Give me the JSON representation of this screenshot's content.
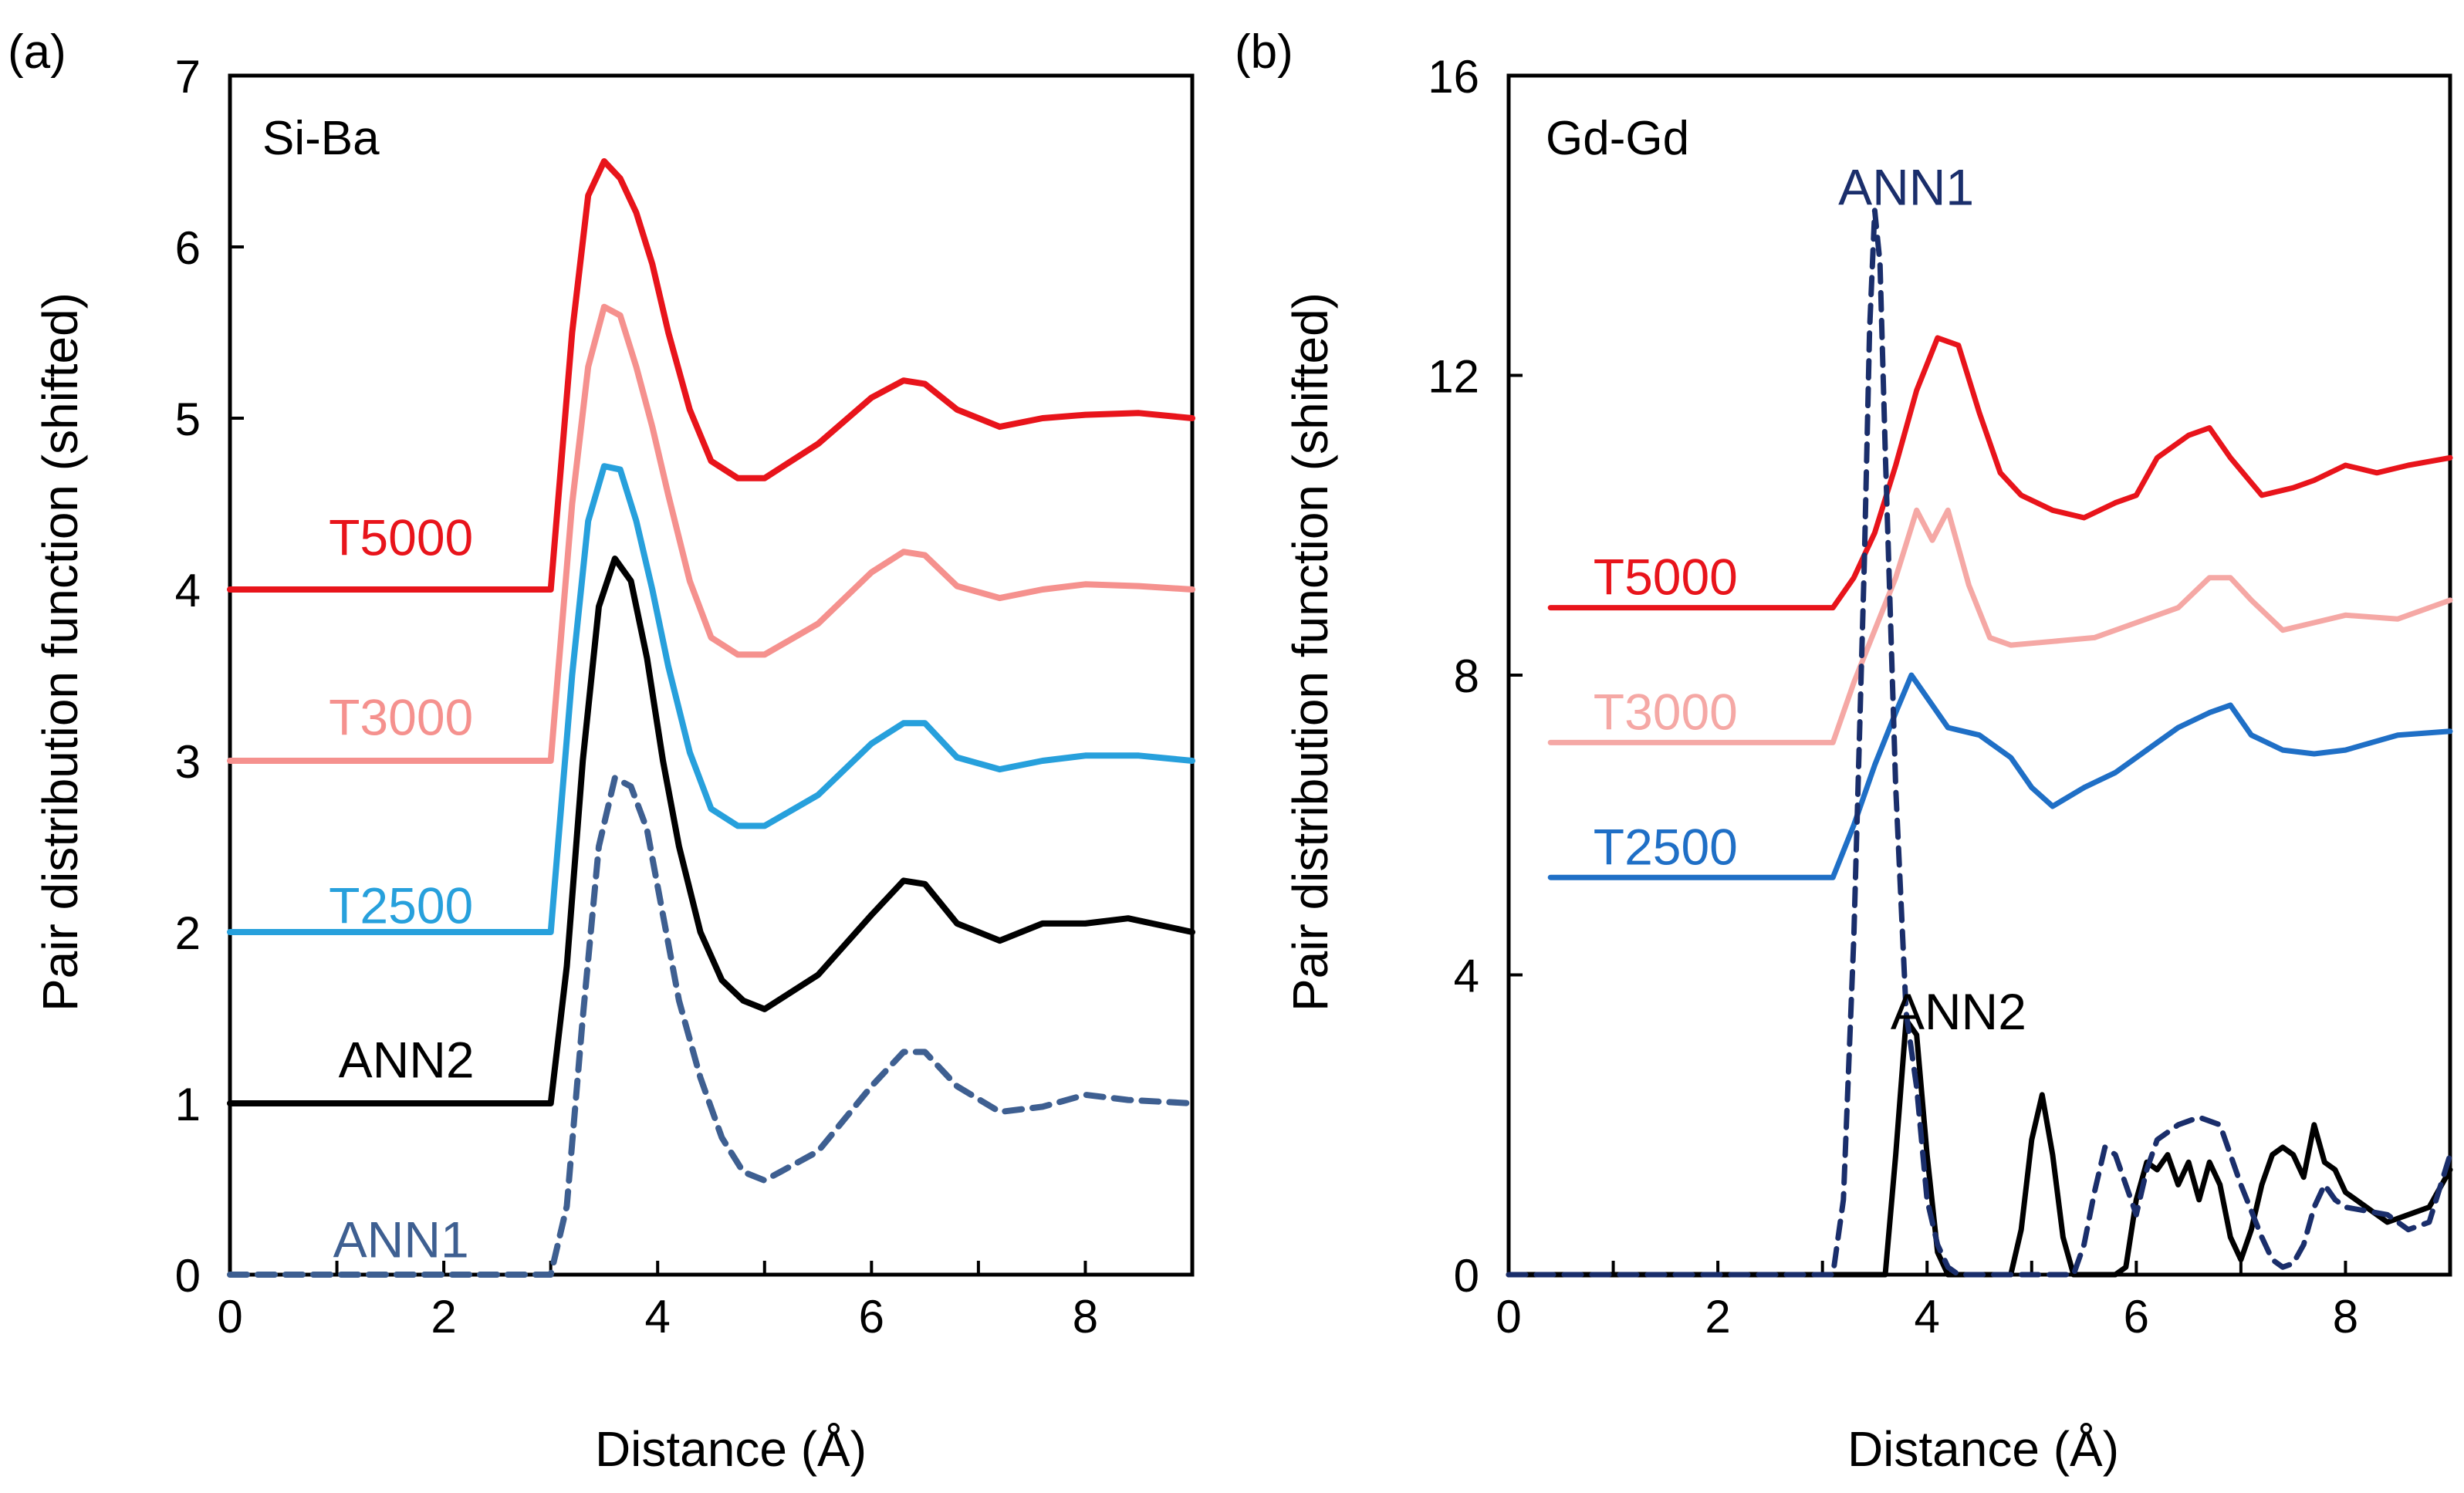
{
  "figure": {
    "panel_a_label": "(a)",
    "panel_b_label": "(b)"
  },
  "chart_data": [
    {
      "type": "line",
      "panel": "(a)",
      "title": "Si-Ba",
      "xlabel": "Distance (Å)",
      "ylabel": "Pair distribution function (shifted)",
      "xlim": [
        0,
        9
      ],
      "ylim": [
        0,
        7
      ],
      "xticks": [
        0,
        2,
        4,
        6,
        8
      ],
      "yticks": [
        0,
        1,
        2,
        3,
        4,
        5,
        6,
        7
      ],
      "grid": false,
      "series": [
        {
          "name": "T5000",
          "color": "#e8141b",
          "dash": "solid",
          "offset": 4,
          "label_pos": [
            1.6,
            4.3
          ],
          "x": [
            0,
            3.0,
            3.2,
            3.35,
            3.5,
            3.65,
            3.8,
            3.95,
            4.1,
            4.3,
            4.5,
            4.75,
            5.0,
            5.5,
            6.0,
            6.3,
            6.5,
            6.8,
            7.2,
            7.6,
            8.0,
            8.5,
            9.0
          ],
          "y": [
            0,
            0,
            1.5,
            2.3,
            2.5,
            2.4,
            2.2,
            1.9,
            1.5,
            1.05,
            0.75,
            0.65,
            0.65,
            0.85,
            1.12,
            1.22,
            1.2,
            1.05,
            0.95,
            1.0,
            1.02,
            1.03,
            1.0
          ]
        },
        {
          "name": "T3000",
          "color": "#f5918e",
          "dash": "solid",
          "offset": 3,
          "label_pos": [
            1.6,
            3.25
          ],
          "x": [
            0,
            3.0,
            3.2,
            3.35,
            3.5,
            3.65,
            3.8,
            3.95,
            4.1,
            4.3,
            4.5,
            4.75,
            5.0,
            5.5,
            6.0,
            6.3,
            6.5,
            6.8,
            7.2,
            7.6,
            8.0,
            8.5,
            9.0
          ],
          "y": [
            0,
            0,
            1.5,
            2.3,
            2.65,
            2.6,
            2.3,
            1.95,
            1.55,
            1.05,
            0.72,
            0.62,
            0.62,
            0.8,
            1.1,
            1.22,
            1.2,
            1.02,
            0.95,
            1.0,
            1.03,
            1.02,
            1.0
          ]
        },
        {
          "name": "T2500",
          "color": "#27a0dc",
          "dash": "solid",
          "offset": 2,
          "label_pos": [
            1.6,
            2.15
          ],
          "x": [
            0,
            3.0,
            3.2,
            3.35,
            3.5,
            3.65,
            3.8,
            3.95,
            4.1,
            4.3,
            4.5,
            4.75,
            5.0,
            5.5,
            6.0,
            6.3,
            6.5,
            6.8,
            7.2,
            7.6,
            8.0,
            8.5,
            9.0
          ],
          "y": [
            0,
            0,
            1.5,
            2.4,
            2.72,
            2.7,
            2.4,
            2.0,
            1.55,
            1.05,
            0.72,
            0.62,
            0.62,
            0.8,
            1.1,
            1.22,
            1.22,
            1.02,
            0.95,
            1.0,
            1.03,
            1.03,
            1.0
          ]
        },
        {
          "name": "ANN2",
          "color": "#000000",
          "dash": "solid",
          "offset": 1,
          "label_pos": [
            1.65,
            1.25
          ],
          "x": [
            0,
            3.0,
            3.15,
            3.3,
            3.45,
            3.6,
            3.75,
            3.9,
            4.05,
            4.2,
            4.4,
            4.6,
            4.8,
            5.0,
            5.5,
            6.0,
            6.3,
            6.5,
            6.8,
            7.2,
            7.6,
            8.0,
            8.4,
            9.0
          ],
          "y": [
            0,
            0,
            0.8,
            2.0,
            2.9,
            3.18,
            3.05,
            2.6,
            2.0,
            1.5,
            1.0,
            0.72,
            0.6,
            0.55,
            0.75,
            1.1,
            1.3,
            1.28,
            1.05,
            0.95,
            1.05,
            1.05,
            1.08,
            1.0
          ]
        },
        {
          "name": "ANN1",
          "color": "#3e5f91",
          "dash": "dashed",
          "offset": 0,
          "label_pos": [
            1.6,
            0.2
          ],
          "x": [
            0,
            3.0,
            3.15,
            3.3,
            3.45,
            3.6,
            3.75,
            3.9,
            4.05,
            4.2,
            4.4,
            4.6,
            4.8,
            5.0,
            5.5,
            6.0,
            6.3,
            6.5,
            6.8,
            7.2,
            7.6,
            8.0,
            8.4,
            9.0
          ],
          "y": [
            0,
            0,
            0.4,
            1.5,
            2.5,
            2.9,
            2.85,
            2.6,
            2.1,
            1.6,
            1.15,
            0.8,
            0.6,
            0.55,
            0.72,
            1.1,
            1.3,
            1.3,
            1.1,
            0.95,
            0.98,
            1.05,
            1.02,
            1.0
          ]
        }
      ]
    },
    {
      "type": "line",
      "panel": "(b)",
      "title": "Gd-Gd",
      "xlabel": "Distance (Å)",
      "ylabel": "Pair distribution function (shifted)",
      "xlim": [
        0,
        9
      ],
      "ylim": [
        0,
        16
      ],
      "xticks": [
        0,
        2,
        4,
        6,
        8
      ],
      "yticks": [
        0,
        4,
        8,
        12,
        16
      ],
      "grid": false,
      "series": [
        {
          "name": "T5000",
          "color": "#e8141b",
          "dash": "solid",
          "label_pos": [
            1.5,
            9.3
          ],
          "x": [
            0.4,
            3.1,
            3.3,
            3.5,
            3.7,
            3.9,
            4.1,
            4.3,
            4.5,
            4.7,
            4.9,
            5.2,
            5.5,
            5.8,
            6.0,
            6.2,
            6.5,
            6.7,
            6.9,
            7.2,
            7.5,
            7.7,
            8.0,
            8.3,
            8.6,
            9.0
          ],
          "y": [
            8.9,
            8.9,
            9.3,
            9.9,
            10.8,
            11.8,
            12.5,
            12.4,
            11.5,
            10.7,
            10.4,
            10.2,
            10.1,
            10.3,
            10.4,
            10.9,
            11.2,
            11.3,
            10.9,
            10.4,
            10.5,
            10.6,
            10.8,
            10.7,
            10.8,
            10.9
          ]
        },
        {
          "name": "T3000",
          "color": "#f5a8a5",
          "dash": "solid",
          "label_pos": [
            1.5,
            7.5
          ],
          "x": [
            0.4,
            3.1,
            3.3,
            3.5,
            3.7,
            3.9,
            4.05,
            4.2,
            4.4,
            4.6,
            4.8,
            5.2,
            5.6,
            6.0,
            6.4,
            6.7,
            6.9,
            7.1,
            7.4,
            7.7,
            8.0,
            8.5,
            9.0
          ],
          "y": [
            7.1,
            7.1,
            7.9,
            8.6,
            9.3,
            10.2,
            9.8,
            10.2,
            9.2,
            8.5,
            8.4,
            8.45,
            8.5,
            8.7,
            8.9,
            9.3,
            9.3,
            9.0,
            8.6,
            8.7,
            8.8,
            8.75,
            9.0
          ]
        },
        {
          "name": "T2500",
          "color": "#1f6fc6",
          "dash": "solid",
          "label_pos": [
            1.5,
            5.7
          ],
          "x": [
            0.4,
            3.1,
            3.3,
            3.5,
            3.7,
            3.85,
            4.0,
            4.2,
            4.5,
            4.8,
            5.0,
            5.2,
            5.5,
            5.8,
            6.1,
            6.4,
            6.7,
            6.9,
            7.1,
            7.4,
            7.7,
            8.0,
            8.5,
            9.0
          ],
          "y": [
            5.3,
            5.3,
            6.0,
            6.8,
            7.5,
            8.0,
            7.7,
            7.3,
            7.2,
            6.9,
            6.5,
            6.25,
            6.5,
            6.7,
            7.0,
            7.3,
            7.5,
            7.6,
            7.2,
            7.0,
            6.95,
            7.0,
            7.2,
            7.25
          ]
        },
        {
          "name": "ANN2",
          "color": "#000000",
          "dash": "solid",
          "label_pos": [
            4.3,
            3.5
          ],
          "x": [
            0,
            3.6,
            3.7,
            3.8,
            3.9,
            4.0,
            4.1,
            4.2,
            4.3,
            4.4,
            4.5,
            4.6,
            4.7,
            4.8,
            4.9,
            5.0,
            5.1,
            5.2,
            5.3,
            5.4,
            5.5,
            5.6,
            5.8,
            5.9,
            6.0,
            6.1,
            6.2,
            6.3,
            6.4,
            6.5,
            6.6,
            6.7,
            6.8,
            6.9,
            7.0,
            7.1,
            7.2,
            7.3,
            7.4,
            7.5,
            7.6,
            7.7,
            7.8,
            7.9,
            8.0,
            8.2,
            8.4,
            8.6,
            8.8,
            9.0
          ],
          "y": [
            0,
            0,
            1.6,
            3.4,
            3.2,
            1.6,
            0.3,
            0,
            0,
            0,
            0,
            0,
            0,
            0,
            0.6,
            1.8,
            2.4,
            1.6,
            0.5,
            0,
            0,
            0,
            0,
            0.1,
            1.0,
            1.5,
            1.4,
            1.6,
            1.2,
            1.5,
            1.0,
            1.5,
            1.2,
            0.5,
            0.2,
            0.6,
            1.2,
            1.6,
            1.7,
            1.6,
            1.3,
            2.0,
            1.5,
            1.4,
            1.1,
            0.9,
            0.7,
            0.8,
            0.9,
            1.4
          ]
        },
        {
          "name": "ANN1",
          "color": "#1a2e6b",
          "dash": "dashed",
          "label_pos": [
            3.8,
            14.5
          ],
          "x": [
            0,
            3.1,
            3.2,
            3.3,
            3.4,
            3.45,
            3.5,
            3.55,
            3.6,
            3.7,
            3.8,
            3.9,
            4.0,
            4.1,
            4.2,
            4.3,
            4.4,
            5.4,
            5.5,
            5.6,
            5.7,
            5.8,
            5.9,
            6.0,
            6.1,
            6.2,
            6.4,
            6.6,
            6.8,
            7.0,
            7.2,
            7.3,
            7.4,
            7.5,
            7.6,
            7.7,
            7.8,
            7.9,
            8.0,
            8.2,
            8.4,
            8.6,
            8.8,
            9.0
          ],
          "y": [
            0,
            0,
            1.0,
            4.5,
            9.5,
            12.6,
            14.2,
            13.5,
            11.0,
            6.5,
            3.5,
            2.5,
            1.0,
            0.4,
            0.1,
            0,
            0,
            0,
            0.4,
            1.1,
            1.7,
            1.6,
            1.2,
            0.8,
            1.4,
            1.8,
            2.0,
            2.1,
            2.0,
            1.2,
            0.5,
            0.2,
            0.1,
            0.15,
            0.4,
            0.9,
            1.2,
            1.0,
            0.9,
            0.85,
            0.8,
            0.6,
            0.7,
            1.6
          ]
        }
      ]
    }
  ]
}
